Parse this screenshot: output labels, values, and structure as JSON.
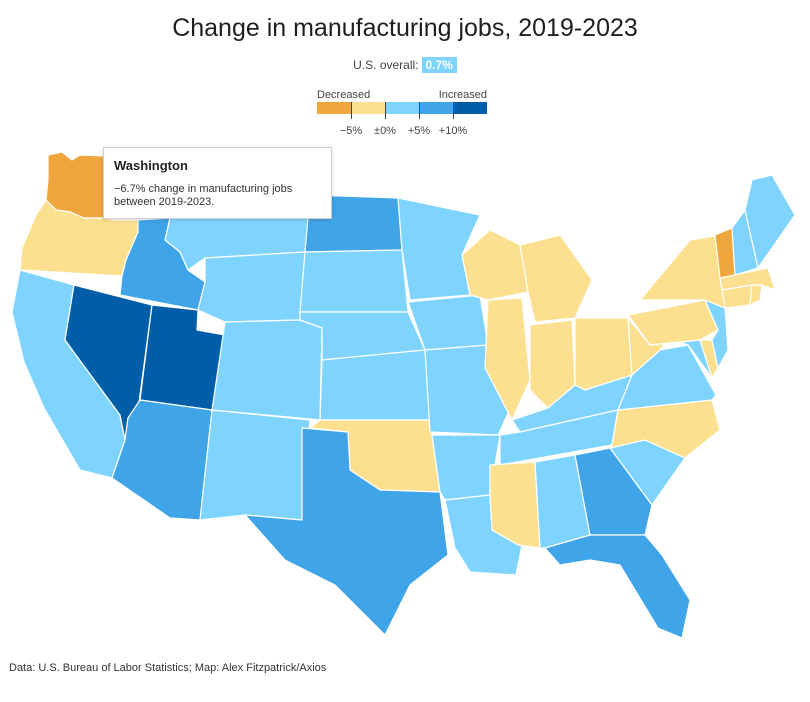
{
  "title": "Change in manufacturing jobs, 2019‑2023",
  "overall": {
    "label": "U.S. overall:",
    "value": "0.7%"
  },
  "legend": {
    "decreased_label": "Decreased",
    "increased_label": "Increased",
    "swatches": [
      "#efa63c",
      "#fde08f",
      "#7fd4ff",
      "#3fa4e8",
      "#005ea8"
    ],
    "ticks": [
      "−5%",
      "±0%",
      "+5%",
      "+10%"
    ]
  },
  "colors": {
    "strong_decrease": "#efa63c",
    "decrease": "#fde08f",
    "increase": "#7fd4ff",
    "moderate_increase": "#3fa4e8",
    "strong_increase": "#005ea8"
  },
  "states": [
    {
      "name": "Washington",
      "value": -6.7,
      "color": "#efa63c"
    },
    {
      "name": "Oregon",
      "color": "#fde08f"
    },
    {
      "name": "California",
      "color": "#7fd4ff"
    },
    {
      "name": "Nevada",
      "color": "#005ea8"
    },
    {
      "name": "Utah",
      "color": "#005ea8"
    },
    {
      "name": "Idaho",
      "color": "#3fa4e8"
    },
    {
      "name": "Montana",
      "color": "#7fd4ff"
    },
    {
      "name": "Wyoming",
      "color": "#7fd4ff"
    },
    {
      "name": "Arizona",
      "color": "#3fa4e8"
    },
    {
      "name": "New Mexico",
      "color": "#7fd4ff"
    },
    {
      "name": "Colorado",
      "color": "#7fd4ff"
    },
    {
      "name": "North Dakota",
      "color": "#3fa4e8"
    },
    {
      "name": "South Dakota",
      "color": "#7fd4ff"
    },
    {
      "name": "Nebraska",
      "color": "#7fd4ff"
    },
    {
      "name": "Kansas",
      "color": "#7fd4ff"
    },
    {
      "name": "Oklahoma",
      "color": "#fde08f"
    },
    {
      "name": "Texas",
      "color": "#3fa4e8"
    },
    {
      "name": "Minnesota",
      "color": "#7fd4ff"
    },
    {
      "name": "Iowa",
      "color": "#7fd4ff"
    },
    {
      "name": "Missouri",
      "color": "#7fd4ff"
    },
    {
      "name": "Arkansas",
      "color": "#7fd4ff"
    },
    {
      "name": "Louisiana",
      "color": "#7fd4ff"
    },
    {
      "name": "Wisconsin",
      "color": "#fde08f"
    },
    {
      "name": "Illinois",
      "color": "#fde08f"
    },
    {
      "name": "Michigan",
      "color": "#fde08f"
    },
    {
      "name": "Indiana",
      "color": "#fde08f"
    },
    {
      "name": "Ohio",
      "color": "#fde08f"
    },
    {
      "name": "Kentucky",
      "color": "#7fd4ff"
    },
    {
      "name": "Tennessee",
      "color": "#7fd4ff"
    },
    {
      "name": "Mississippi",
      "color": "#fde08f"
    },
    {
      "name": "Alabama",
      "color": "#7fd4ff"
    },
    {
      "name": "Georgia",
      "color": "#3fa4e8"
    },
    {
      "name": "Florida",
      "color": "#3fa4e8"
    },
    {
      "name": "South Carolina",
      "color": "#7fd4ff"
    },
    {
      "name": "North Carolina",
      "color": "#fde08f"
    },
    {
      "name": "Virginia",
      "color": "#7fd4ff"
    },
    {
      "name": "West Virginia",
      "color": "#fde08f"
    },
    {
      "name": "Maryland",
      "color": "#7fd4ff"
    },
    {
      "name": "Delaware",
      "color": "#fde08f"
    },
    {
      "name": "Pennsylvania",
      "color": "#fde08f"
    },
    {
      "name": "New Jersey",
      "color": "#7fd4ff"
    },
    {
      "name": "New York",
      "color": "#fde08f"
    },
    {
      "name": "Connecticut",
      "color": "#fde08f"
    },
    {
      "name": "Rhode Island",
      "color": "#fde08f"
    },
    {
      "name": "Massachusetts",
      "color": "#fde08f"
    },
    {
      "name": "Vermont",
      "color": "#efa63c"
    },
    {
      "name": "New Hampshire",
      "color": "#7fd4ff"
    },
    {
      "name": "Maine",
      "color": "#7fd4ff"
    }
  ],
  "tooltip": {
    "title": "Washington",
    "text": "−6.7% change in manufacturing jobs between 2019‑2023."
  },
  "source": "Data: U.S. Bureau of Labor Statistics; Map: Alex Fitzpatrick/Axios"
}
